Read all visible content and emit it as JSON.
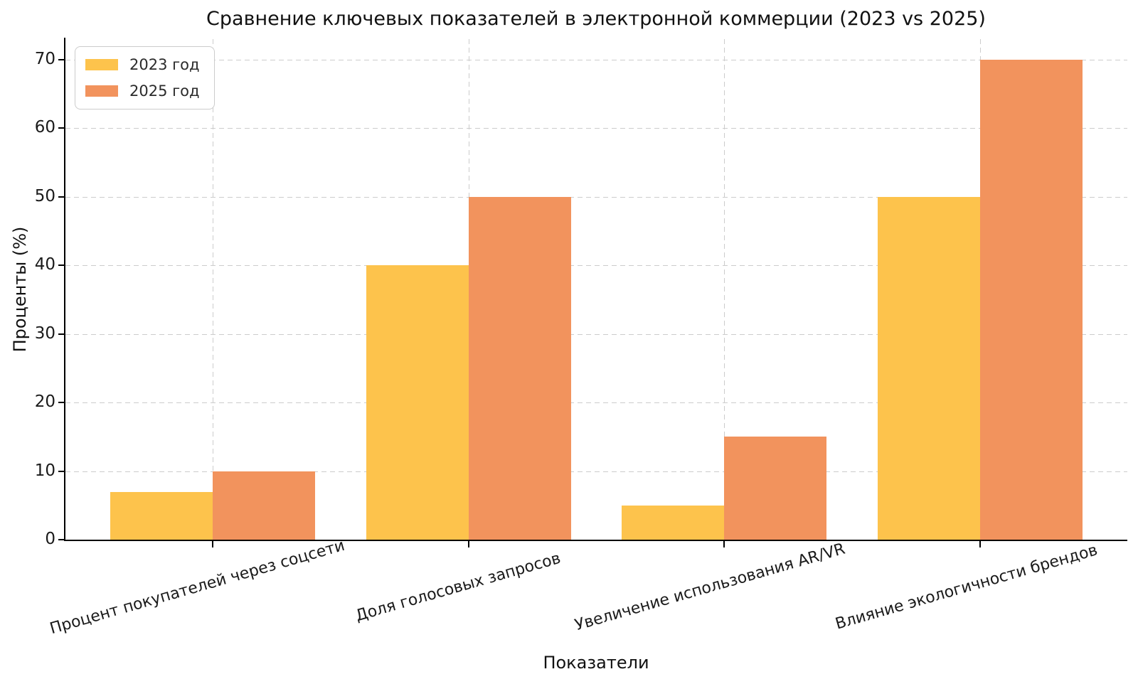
{
  "chart_data": {
    "type": "bar",
    "title": "Сравнение ключевых показателей в электронной коммерции (2023 vs 2025)",
    "xlabel": "Показатели",
    "ylabel": "Проценты (%)",
    "categories": [
      "Процент покупателей через соцсети",
      "Доля голосовых запросов",
      "Увеличение использования AR/VR",
      "Влияние экологичности брендов"
    ],
    "series": [
      {
        "name": "2023 год",
        "color": "#FDC34C",
        "values": [
          7,
          40,
          5,
          50
        ]
      },
      {
        "name": "2025 год",
        "color": "#F2935D",
        "values": [
          10,
          50,
          15,
          70
        ]
      }
    ],
    "yticks": [
      0,
      10,
      20,
      30,
      40,
      50,
      60,
      70
    ],
    "ylim": [
      0,
      73
    ],
    "grid": true,
    "legend_position": "upper left",
    "colors": {
      "grid": "#cccccc",
      "spine": "#000000",
      "text": "#1a1a1a"
    }
  }
}
